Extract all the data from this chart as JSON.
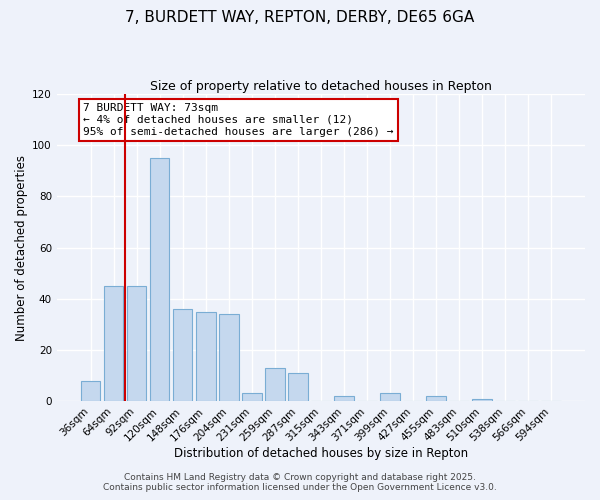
{
  "title": "7, BURDETT WAY, REPTON, DERBY, DE65 6GA",
  "subtitle": "Size of property relative to detached houses in Repton",
  "xlabel": "Distribution of detached houses by size in Repton",
  "ylabel": "Number of detached properties",
  "bar_labels": [
    "36sqm",
    "64sqm",
    "92sqm",
    "120sqm",
    "148sqm",
    "176sqm",
    "204sqm",
    "231sqm",
    "259sqm",
    "287sqm",
    "315sqm",
    "343sqm",
    "371sqm",
    "399sqm",
    "427sqm",
    "455sqm",
    "483sqm",
    "510sqm",
    "538sqm",
    "566sqm",
    "594sqm"
  ],
  "bar_values": [
    8,
    45,
    45,
    95,
    36,
    35,
    34,
    3,
    13,
    11,
    0,
    2,
    0,
    3,
    0,
    2,
    0,
    1,
    0,
    0,
    0
  ],
  "bar_color": "#c5d8ee",
  "bar_edge_color": "#7aadd4",
  "vline_color": "#cc0000",
  "ylim": [
    0,
    120
  ],
  "yticks": [
    0,
    20,
    40,
    60,
    80,
    100,
    120
  ],
  "annotation_title": "7 BURDETT WAY: 73sqm",
  "annotation_line1": "← 4% of detached houses are smaller (12)",
  "annotation_line2": "95% of semi-detached houses are larger (286) →",
  "annotation_box_color": "#ffffff",
  "annotation_box_edge": "#cc0000",
  "footer1": "Contains HM Land Registry data © Crown copyright and database right 2025.",
  "footer2": "Contains public sector information licensed under the Open Government Licence v3.0.",
  "bg_color": "#eef2fa",
  "grid_color": "#ffffff",
  "title_fontsize": 11,
  "subtitle_fontsize": 9,
  "label_fontsize": 8.5,
  "tick_fontsize": 7.5,
  "annotation_fontsize": 8,
  "footer_fontsize": 6.5
}
